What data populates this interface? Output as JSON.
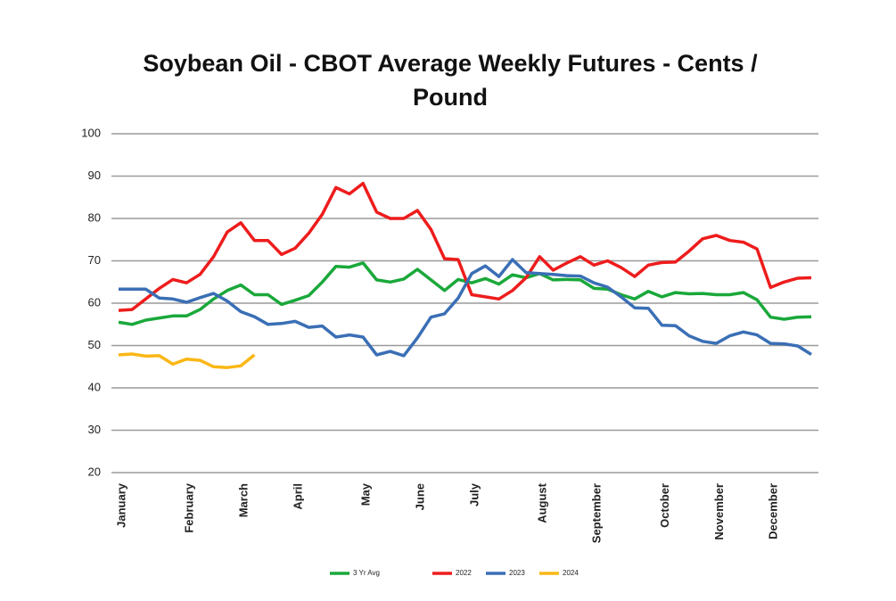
{
  "chart_data": {
    "type": "line",
    "title": "Soybean Oil - CBOT Average Weekly Futures - Cents / Pound",
    "categories": [
      "January",
      null,
      null,
      null,
      null,
      "February",
      null,
      null,
      null,
      "March",
      null,
      null,
      null,
      "April",
      null,
      null,
      null,
      null,
      "May",
      null,
      null,
      null,
      "June",
      null,
      null,
      null,
      "July",
      null,
      null,
      null,
      null,
      "August",
      null,
      null,
      null,
      "September",
      null,
      null,
      null,
      null,
      "October",
      null,
      null,
      null,
      "November",
      null,
      null,
      null,
      "December",
      null,
      null,
      null
    ],
    "series": [
      {
        "name": "3 Yr Avg",
        "color": "#1aa83a",
        "values": [
          55.5,
          55,
          56,
          56.5,
          57,
          57,
          58.5,
          61,
          63,
          64.3,
          62,
          62,
          59.7,
          60.7,
          61.8,
          65,
          68.7,
          68.5,
          69.5,
          65.5,
          65,
          65.7,
          68,
          65.5,
          63,
          65.6,
          64.8,
          65.8,
          64.5,
          66.7,
          66,
          67,
          65.5,
          65.6,
          65.5,
          63.5,
          63.3,
          62,
          61,
          62.8,
          61.5,
          62.5,
          62.2,
          62.3,
          62,
          62,
          62.5,
          60.8,
          56.7,
          56.2,
          56.7,
          56.8
        ]
      },
      {
        "name": "2022",
        "color": "#ee1c1c",
        "values": [
          58.3,
          58.5,
          61,
          63.5,
          65.6,
          64.8,
          66.8,
          71,
          76.8,
          79,
          74.8,
          74.8,
          71.5,
          73,
          76.5,
          81,
          87.3,
          85.8,
          88.3,
          81.5,
          80,
          80,
          81.9,
          77.4,
          70.5,
          70.3,
          62,
          61.5,
          61,
          63,
          66,
          71,
          67.8,
          69.5,
          71,
          69,
          70,
          68.4,
          66.3,
          69,
          69.6,
          69.7,
          72.3,
          75.2,
          76,
          74.8,
          74.4,
          72.8,
          63.7,
          65,
          65.9,
          66
        ]
      },
      {
        "name": "2023",
        "color": "#3a6fb5",
        "values": [
          63.3,
          63.3,
          63.3,
          61.2,
          61,
          60.2,
          61.3,
          62.3,
          60.5,
          58,
          56.8,
          55,
          55.2,
          55.7,
          54.3,
          54.6,
          52,
          52.5,
          52,
          47.8,
          48.6,
          47.6,
          51.8,
          56.7,
          57.5,
          61.2,
          67,
          68.8,
          66.3,
          70.3,
          67.2,
          67,
          66.8,
          66.5,
          66.4,
          64.8,
          63.8,
          61.5,
          58.9,
          58.8,
          54.8,
          54.7,
          52.3,
          51,
          50.5,
          52.3,
          53.2,
          52.5,
          50.5,
          50.4,
          49.9,
          47.9
        ]
      },
      {
        "name": "2024",
        "color": "#fbb716",
        "values": [
          47.8,
          48,
          47.5,
          47.6,
          45.6,
          46.8,
          46.5,
          45,
          44.8,
          45.2,
          47.8,
          null,
          null,
          null,
          null,
          null,
          null,
          null,
          null,
          null,
          null,
          null,
          null,
          null,
          null,
          null,
          null,
          null,
          null,
          null,
          null,
          null,
          null,
          null,
          null,
          null,
          null,
          null,
          null,
          null,
          null,
          null,
          null,
          null,
          null,
          null,
          null,
          null,
          null,
          null,
          null,
          null
        ]
      }
    ],
    "ylim": [
      20,
      100
    ],
    "yticks": [
      20,
      30,
      40,
      50,
      60,
      70,
      80,
      90,
      100
    ],
    "grid": true,
    "legend": "bottom"
  }
}
